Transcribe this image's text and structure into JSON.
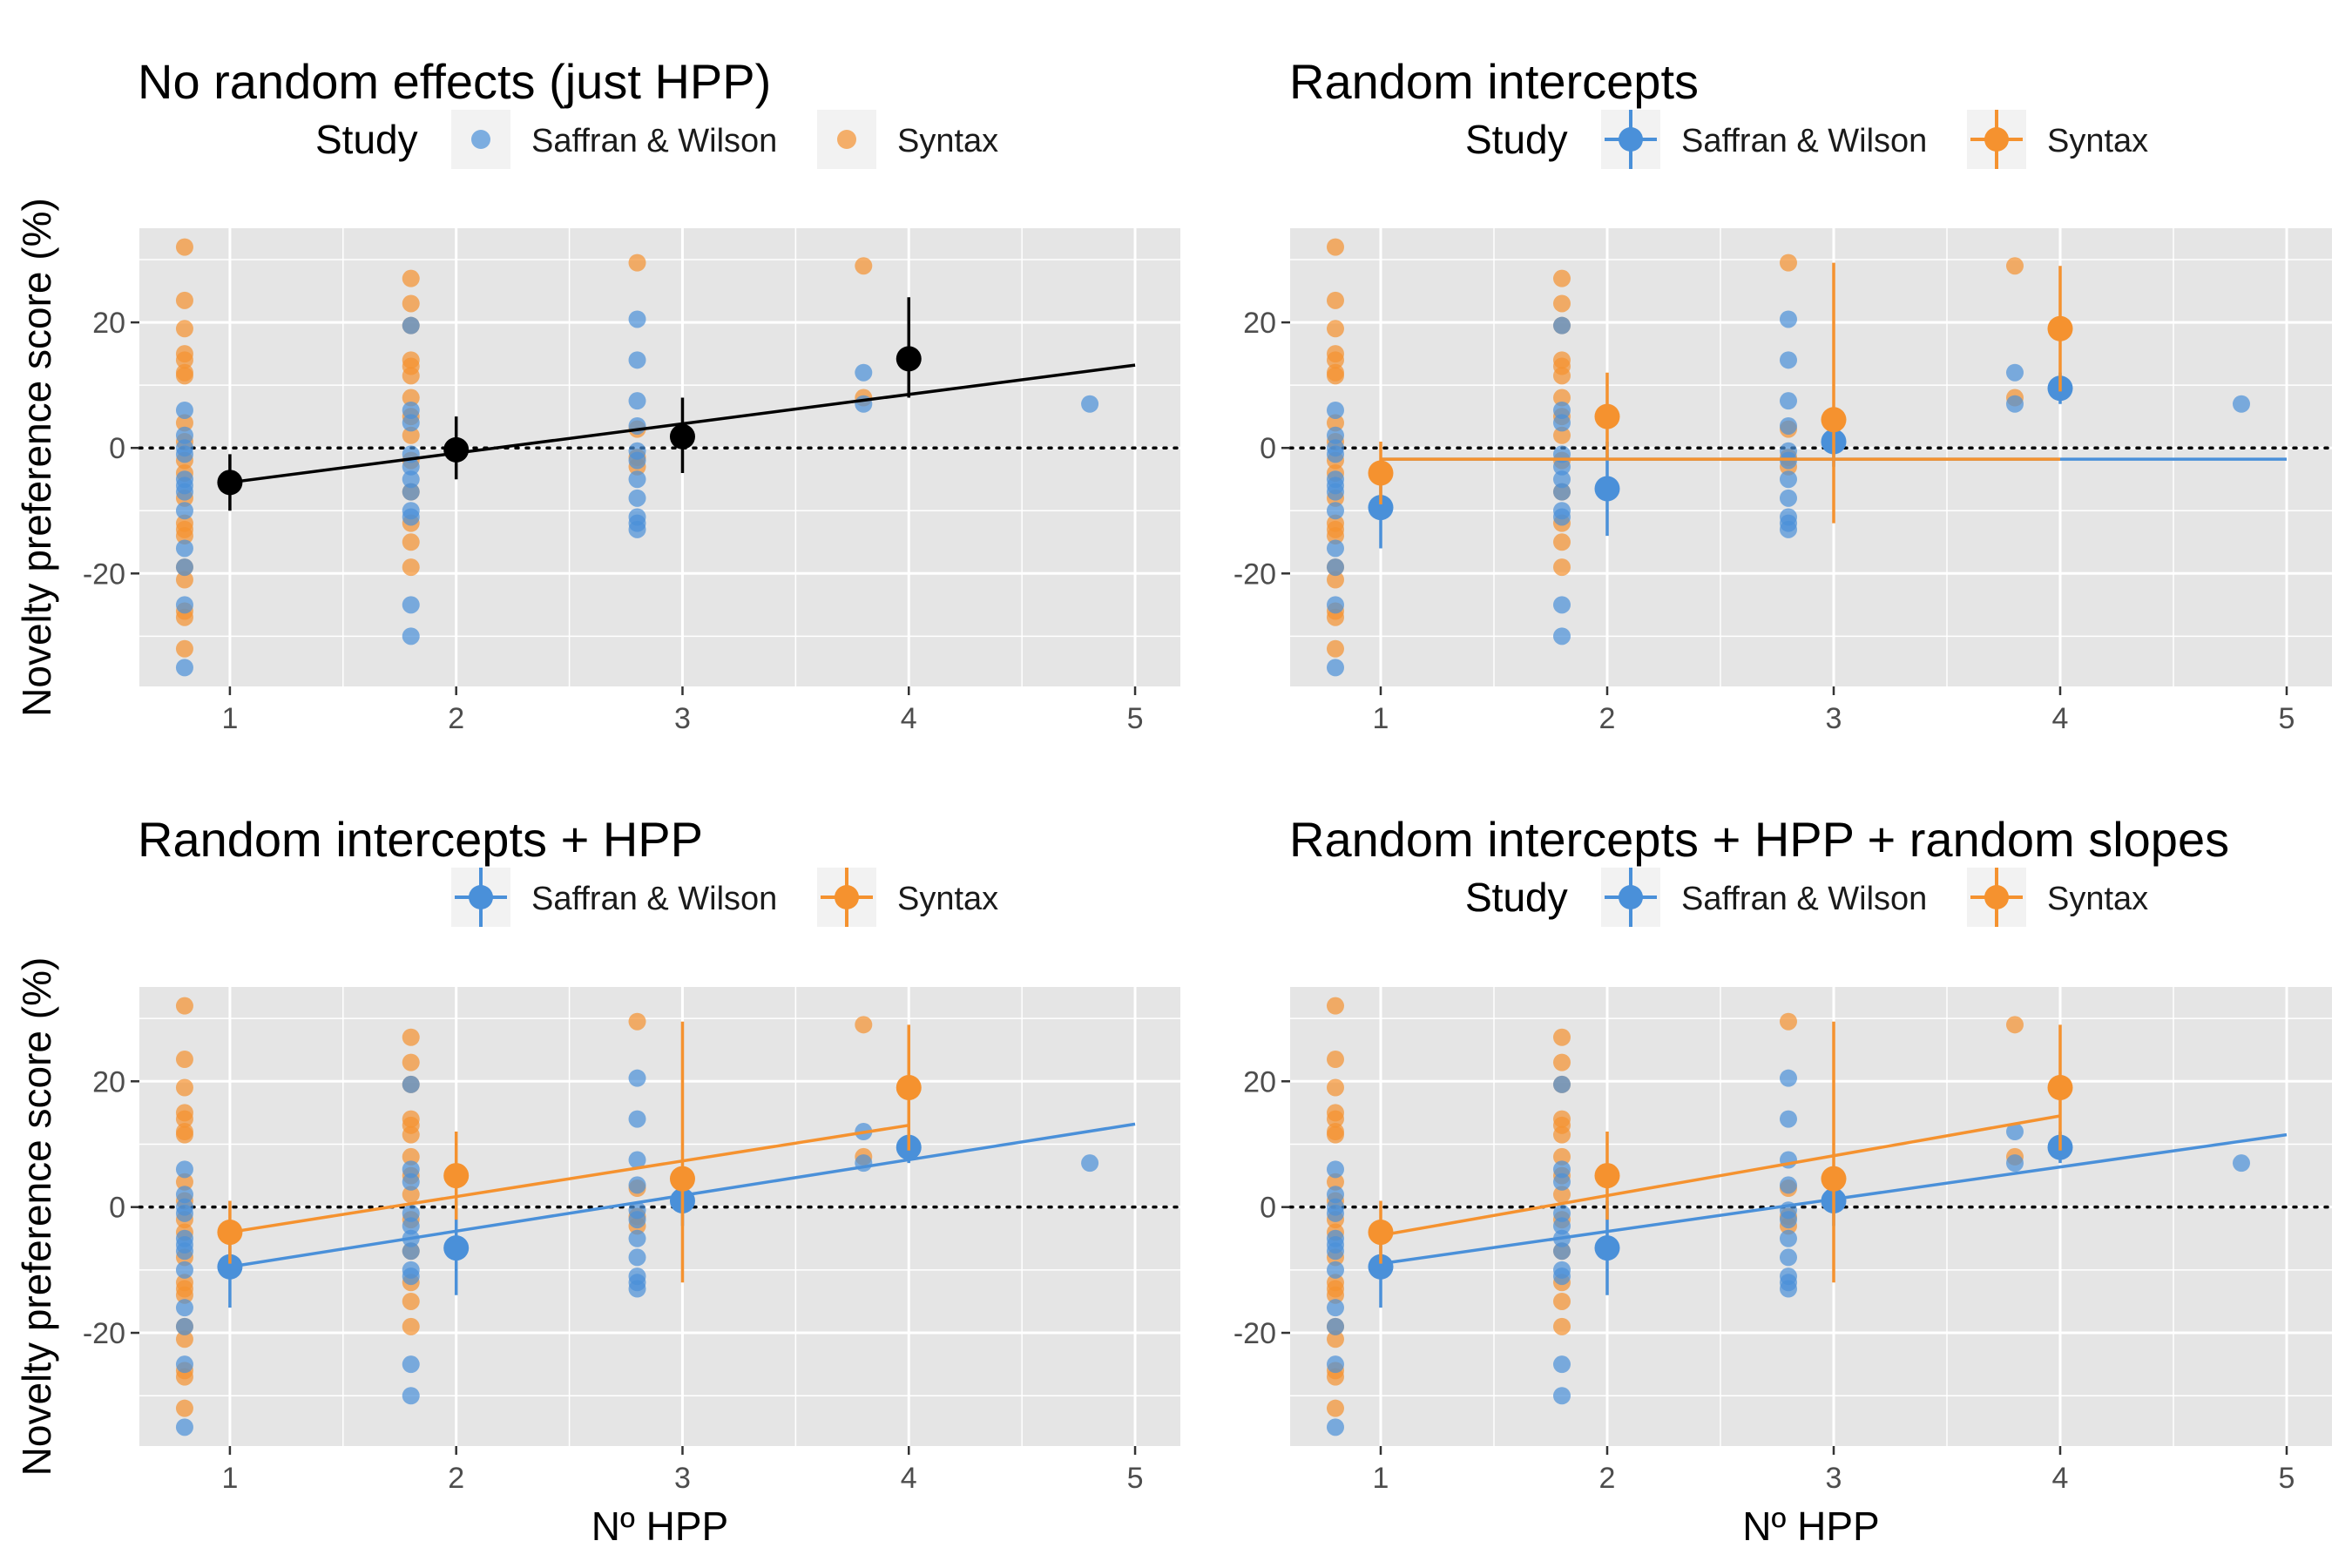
{
  "figure": {
    "ylabel": "Novelty preference score (%)",
    "xlabel": "Nº HPP",
    "legend_title": "Study"
  },
  "colors": {
    "saffran": "#4A90D9",
    "syntax": "#F5922F",
    "overall": "#000000",
    "panel_bg": "#E5E5E5",
    "grid": "#FFFFFF"
  },
  "chart_data": [
    {
      "type": "scatter",
      "title": "No random effects (just HPP)",
      "xlabel": "Nº HPP",
      "ylabel": "Novelty preference score (%)",
      "xlim": [
        0.6,
        5.2
      ],
      "ylim": [
        -38,
        35
      ],
      "xticks": [
        1,
        2,
        3,
        4,
        5
      ],
      "yticks": [
        -20,
        0,
        20
      ],
      "grid": true,
      "legend": "top",
      "legend_style": "points",
      "legend_entries": [
        "Saffran & Wilson",
        "Syntax"
      ],
      "points": {
        "saffran": [
          {
            "x": 0.8,
            "y": 6
          },
          {
            "x": 0.8,
            "y": 2
          },
          {
            "x": 0.8,
            "y": 0
          },
          {
            "x": 0.8,
            "y": -1
          },
          {
            "x": 0.8,
            "y": -5
          },
          {
            "x": 0.8,
            "y": -6
          },
          {
            "x": 0.8,
            "y": -7
          },
          {
            "x": 0.8,
            "y": -10
          },
          {
            "x": 0.8,
            "y": -16
          },
          {
            "x": 0.8,
            "y": -19
          },
          {
            "x": 0.8,
            "y": -25
          },
          {
            "x": 0.8,
            "y": -35
          },
          {
            "x": 1.8,
            "y": 19.5
          },
          {
            "x": 1.8,
            "y": 6
          },
          {
            "x": 1.8,
            "y": 4
          },
          {
            "x": 1.8,
            "y": -1
          },
          {
            "x": 1.8,
            "y": -3
          },
          {
            "x": 1.8,
            "y": -5
          },
          {
            "x": 1.8,
            "y": -7
          },
          {
            "x": 1.8,
            "y": -10
          },
          {
            "x": 1.8,
            "y": -11
          },
          {
            "x": 1.8,
            "y": -25
          },
          {
            "x": 1.8,
            "y": -30
          },
          {
            "x": 2.8,
            "y": 20.5
          },
          {
            "x": 2.8,
            "y": 14
          },
          {
            "x": 2.8,
            "y": 7.5
          },
          {
            "x": 2.8,
            "y": 3.5
          },
          {
            "x": 2.8,
            "y": -0.5
          },
          {
            "x": 2.8,
            "y": -2
          },
          {
            "x": 2.8,
            "y": -5
          },
          {
            "x": 2.8,
            "y": -8
          },
          {
            "x": 2.8,
            "y": -11
          },
          {
            "x": 2.8,
            "y": -12
          },
          {
            "x": 2.8,
            "y": -13
          },
          {
            "x": 3.8,
            "y": 12
          },
          {
            "x": 3.8,
            "y": 7
          },
          {
            "x": 4.8,
            "y": 7
          }
        ],
        "syntax": [
          {
            "x": 0.8,
            "y": 32
          },
          {
            "x": 0.8,
            "y": 23.5
          },
          {
            "x": 0.8,
            "y": 19
          },
          {
            "x": 0.8,
            "y": 15
          },
          {
            "x": 0.8,
            "y": 14
          },
          {
            "x": 0.8,
            "y": 12
          },
          {
            "x": 0.8,
            "y": 11.5
          },
          {
            "x": 0.8,
            "y": 4
          },
          {
            "x": 0.8,
            "y": 1
          },
          {
            "x": 0.8,
            "y": -2
          },
          {
            "x": 0.8,
            "y": -4
          },
          {
            "x": 0.8,
            "y": -8
          },
          {
            "x": 0.8,
            "y": -12
          },
          {
            "x": 0.8,
            "y": -13
          },
          {
            "x": 0.8,
            "y": -14
          },
          {
            "x": 0.8,
            "y": -19
          },
          {
            "x": 0.8,
            "y": -21
          },
          {
            "x": 0.8,
            "y": -26
          },
          {
            "x": 0.8,
            "y": -27
          },
          {
            "x": 0.8,
            "y": -32
          },
          {
            "x": 1.8,
            "y": 27
          },
          {
            "x": 1.8,
            "y": 23
          },
          {
            "x": 1.8,
            "y": 19.5
          },
          {
            "x": 1.8,
            "y": 14
          },
          {
            "x": 1.8,
            "y": 13
          },
          {
            "x": 1.8,
            "y": 11.5
          },
          {
            "x": 1.8,
            "y": 8
          },
          {
            "x": 1.8,
            "y": 5
          },
          {
            "x": 1.8,
            "y": 2
          },
          {
            "x": 1.8,
            "y": -2
          },
          {
            "x": 1.8,
            "y": -7
          },
          {
            "x": 1.8,
            "y": -12
          },
          {
            "x": 1.8,
            "y": -15
          },
          {
            "x": 1.8,
            "y": -19
          },
          {
            "x": 2.8,
            "y": 29.5
          },
          {
            "x": 2.8,
            "y": 3
          },
          {
            "x": 2.8,
            "y": -1.5
          },
          {
            "x": 2.8,
            "y": -3
          },
          {
            "x": 3.8,
            "y": 29
          },
          {
            "x": 3.8,
            "y": 8
          }
        ]
      },
      "means": [
        {
          "group": "overall",
          "x": 1,
          "y": -5.5,
          "lo": -10,
          "hi": -1
        },
        {
          "group": "overall",
          "x": 2,
          "y": -0.3,
          "lo": -5,
          "hi": 5
        },
        {
          "group": "overall",
          "x": 3,
          "y": 1.8,
          "lo": -4,
          "hi": 8
        },
        {
          "group": "overall",
          "x": 4,
          "y": 14.2,
          "lo": 8,
          "hi": 24
        }
      ],
      "lines": [
        {
          "group": "overall",
          "x": [
            1,
            5
          ],
          "y": [
            -5.5,
            13.2
          ]
        }
      ]
    },
    {
      "type": "scatter",
      "title": "Random intercepts",
      "xlabel": "",
      "ylabel": "",
      "xlim": [
        0.6,
        5.2
      ],
      "ylim": [
        -38,
        35
      ],
      "xticks": [
        1,
        2,
        3,
        4,
        5
      ],
      "yticks": [
        -20,
        0,
        20
      ],
      "grid": true,
      "legend": "top",
      "legend_style": "pointrange",
      "legend_entries": [
        "Saffran & Wilson",
        "Syntax"
      ],
      "points": "same as panel 1",
      "means": [
        {
          "group": "saffran",
          "x": 1,
          "y": -9.5,
          "lo": -16,
          "hi": -3
        },
        {
          "group": "saffran",
          "x": 2,
          "y": -6.5,
          "lo": -14,
          "hi": 1
        },
        {
          "group": "saffran",
          "x": 3,
          "y": 1,
          "lo": -3,
          "hi": 5
        },
        {
          "group": "saffran",
          "x": 4,
          "y": 9.5,
          "lo": 7,
          "hi": 12
        },
        {
          "group": "syntax",
          "x": 1,
          "y": -4,
          "lo": -9,
          "hi": 1
        },
        {
          "group": "syntax",
          "x": 2,
          "y": 5,
          "lo": -2,
          "hi": 12
        },
        {
          "group": "syntax",
          "x": 3,
          "y": 4.5,
          "lo": -12,
          "hi": 29.5
        },
        {
          "group": "syntax",
          "x": 4,
          "y": 19,
          "lo": 9,
          "hi": 29
        }
      ],
      "lines": [
        {
          "group": "saffran",
          "x": [
            1,
            5
          ],
          "y": [
            -1.8,
            -1.8
          ]
        },
        {
          "group": "syntax",
          "x": [
            1,
            4
          ],
          "y": [
            -1.8,
            -1.8
          ]
        }
      ]
    },
    {
      "type": "scatter",
      "title": "Random intercepts + HPP",
      "xlabel": "Nº HPP",
      "ylabel": "Novelty preference score (%)",
      "xlim": [
        0.6,
        5.2
      ],
      "ylim": [
        -38,
        35
      ],
      "xticks": [
        1,
        2,
        3,
        4,
        5
      ],
      "yticks": [
        -20,
        0,
        20
      ],
      "grid": true,
      "legend": "top",
      "legend_style": "pointrange",
      "legend_entries": [
        "Saffran & Wilson",
        "Syntax"
      ],
      "points": "same as panel 1",
      "means": "same as panel 2",
      "lines": [
        {
          "group": "saffran",
          "x": [
            1,
            5
          ],
          "y": [
            -9.5,
            13.2
          ]
        },
        {
          "group": "syntax",
          "x": [
            1,
            4
          ],
          "y": [
            -4,
            13
          ]
        }
      ]
    },
    {
      "type": "scatter",
      "title": "Random intercepts + HPP + random slopes",
      "xlabel": "Nº HPP",
      "ylabel": "",
      "xlim": [
        0.6,
        5.2
      ],
      "ylim": [
        -38,
        35
      ],
      "xticks": [
        1,
        2,
        3,
        4,
        5
      ],
      "yticks": [
        -20,
        0,
        20
      ],
      "grid": true,
      "legend": "top",
      "legend_style": "pointrange",
      "legend_entries": [
        "Saffran & Wilson",
        "Syntax"
      ],
      "points": "same as panel 1",
      "means": "same as panel 2",
      "lines": [
        {
          "group": "saffran",
          "x": [
            1,
            5
          ],
          "y": [
            -9,
            11.5
          ]
        },
        {
          "group": "syntax",
          "x": [
            1,
            4
          ],
          "y": [
            -4.5,
            14.5
          ]
        }
      ]
    }
  ]
}
